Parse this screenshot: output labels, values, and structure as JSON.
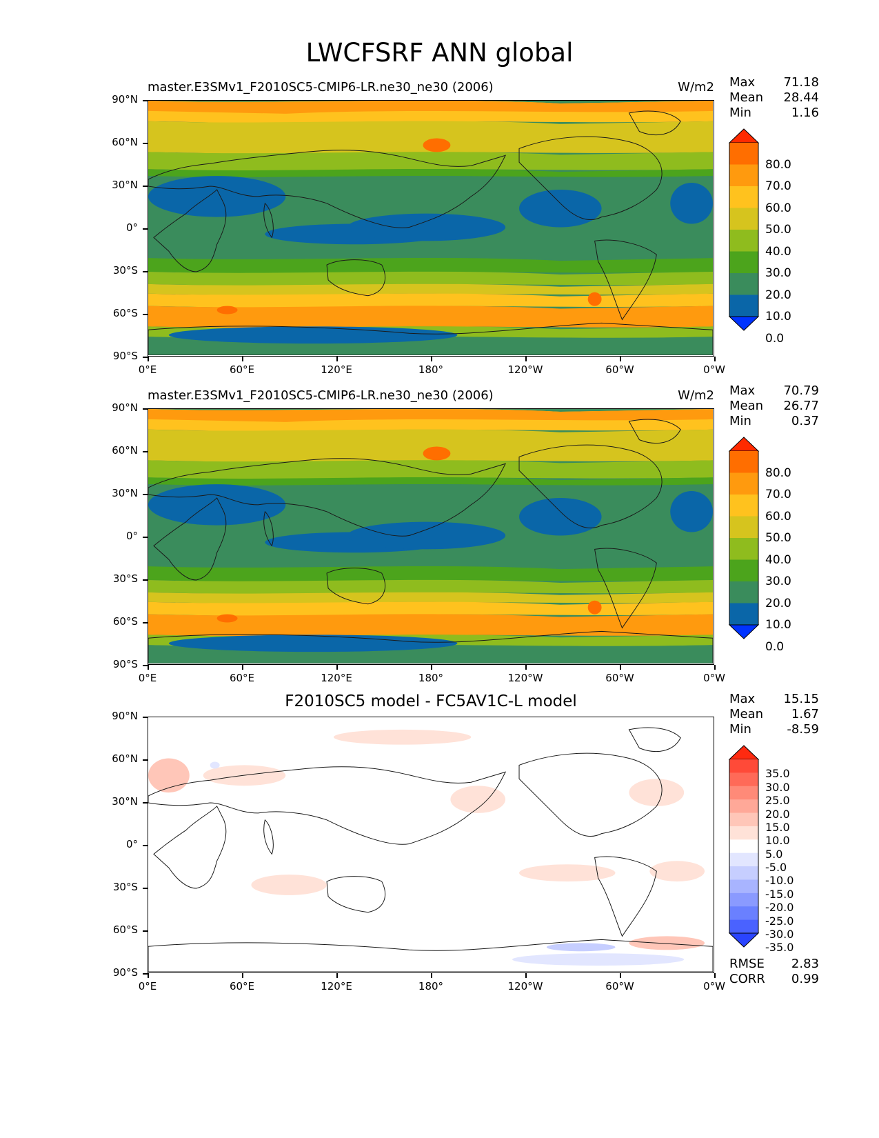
{
  "figure_title": "LWCFSRF ANN global",
  "x_ticks": [
    "0°E",
    "60°E",
    "120°E",
    "180°",
    "120°W",
    "60°W",
    "0°W"
  ],
  "y_ticks": [
    "90°N",
    "60°N",
    "30°N",
    "0°",
    "30°S",
    "60°S",
    "90°S"
  ],
  "panels": [
    {
      "title_left": "master.E3SMv1_F2010SC5-CMIP6-LR.ne30_ne30 (2006)",
      "title_center": "",
      "units": "W/m2",
      "stats": [
        {
          "label": "Max",
          "value": "71.18"
        },
        {
          "label": "Mean",
          "value": "28.44"
        },
        {
          "label": "Min",
          "value": "1.16"
        }
      ],
      "extra_stats": [],
      "colorbar": {
        "labels": [
          "80.0",
          "70.0",
          "60.0",
          "50.0",
          "40.0",
          "30.0",
          "20.0",
          "10.0",
          "0.0"
        ],
        "colors": [
          "#ff2a00",
          "#ff6e00",
          "#ff9a0e",
          "#ffc21e",
          "#d6c41e",
          "#8fbc1e",
          "#4ca41c",
          "#3a8c5c",
          "#0a66a8",
          "#0033ff"
        ]
      }
    },
    {
      "title_left": "master.E3SMv1_F2010SC5-CMIP6-LR.ne30_ne30 (2006)",
      "title_center": "",
      "units": "W/m2",
      "stats": [
        {
          "label": "Max",
          "value": "70.79"
        },
        {
          "label": "Mean",
          "value": "26.77"
        },
        {
          "label": "Min",
          "value": "0.37"
        }
      ],
      "extra_stats": [],
      "colorbar": {
        "labels": [
          "80.0",
          "70.0",
          "60.0",
          "50.0",
          "40.0",
          "30.0",
          "20.0",
          "10.0",
          "0.0"
        ],
        "colors": [
          "#ff2a00",
          "#ff6e00",
          "#ff9a0e",
          "#ffc21e",
          "#d6c41e",
          "#8fbc1e",
          "#4ca41c",
          "#3a8c5c",
          "#0a66a8",
          "#0033ff"
        ]
      }
    },
    {
      "title_left": "",
      "title_center": "F2010SC5 model - FC5AV1C-L model",
      "units": "",
      "stats": [
        {
          "label": "Max",
          "value": "15.15"
        },
        {
          "label": "Mean",
          "value": "1.67"
        },
        {
          "label": "Min",
          "value": "-8.59"
        }
      ],
      "extra_stats": [
        {
          "label": "RMSE",
          "value": "2.83"
        },
        {
          "label": "CORR",
          "value": "0.99"
        }
      ],
      "colorbar": {
        "labels": [
          "35.0",
          "30.0",
          "25.0",
          "20.0",
          "15.0",
          "10.0",
          "5.0",
          "-5.0",
          "-10.0",
          "-15.0",
          "-20.0",
          "-25.0",
          "-30.0",
          "-35.0"
        ],
        "colors": [
          "#ff2a10",
          "#ff4a38",
          "#ff6a58",
          "#ff8a78",
          "#ffa898",
          "#ffc6b8",
          "#ffe2d8",
          "#ffffff",
          "#e2e6ff",
          "#c6ceff",
          "#a8b4ff",
          "#8a9aff",
          "#6a80ff",
          "#4a62ff",
          "#2a44ff"
        ]
      }
    }
  ]
}
